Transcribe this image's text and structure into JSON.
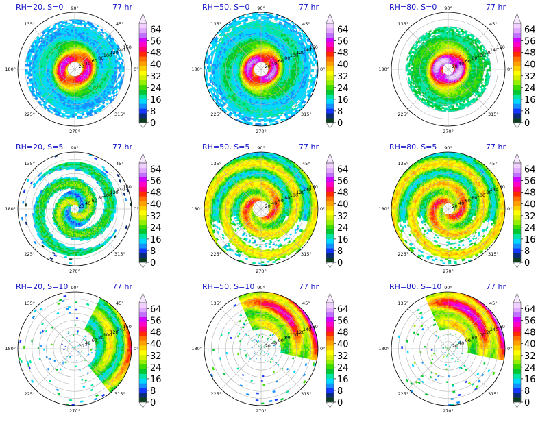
{
  "chart_data": {
    "type": "heatmap",
    "projection": "polar",
    "layout": "3x3 grid of panels",
    "time_label": "77 hr",
    "row_s_values": [
      0,
      5,
      10
    ],
    "col_rh_values": [
      20,
      50,
      80
    ],
    "angular_tick_labels": [
      "0°",
      "45°",
      "90°",
      "135°",
      "180°",
      "225°",
      "270°",
      "315°"
    ],
    "radial_tick_labels": [
      "20",
      "40",
      "60",
      "80",
      "100",
      "120",
      "140",
      "160"
    ],
    "radial_range": [
      0,
      160
    ],
    "colorbar": {
      "min": 0,
      "max": 68,
      "ticks": [
        0,
        8,
        16,
        24,
        32,
        40,
        48,
        56,
        64
      ],
      "extend": "both",
      "colors": [
        "#0e3d1f",
        "#0a2a7a",
        "#1436ff",
        "#1490ff",
        "#00d8ff",
        "#00e6a0",
        "#00c832",
        "#3cdc00",
        "#96ee00",
        "#d2f000",
        "#ffff00",
        "#ffd000",
        "#ffa000",
        "#ff7000",
        "#ff2a00",
        "#ff006e",
        "#ff00c8",
        "#d200ff",
        "#c070ff",
        "#e0a8ff",
        "#f0d0ff"
      ]
    },
    "panels": [
      {
        "title": "RH=20, S=0",
        "rh": 20,
        "s": 0,
        "time": "77 hr",
        "field": {
          "pattern": "spiral",
          "eye_radius": 22,
          "outer_radius": 140,
          "max_value": 58
        }
      },
      {
        "title": "RH=50, S=0",
        "rh": 50,
        "s": 0,
        "time": "77 hr",
        "field": {
          "pattern": "spiral",
          "eye_radius": 20,
          "outer_radius": 158,
          "max_value": 62
        }
      },
      {
        "title": "RH=80, S=0",
        "rh": 80,
        "s": 0,
        "time": "77 hr",
        "field": {
          "pattern": "compact-ring",
          "eye_radius": 16,
          "outer_radius": 118,
          "max_value": 66
        }
      },
      {
        "title": "RH=20, S=5",
        "rh": 20,
        "s": 5,
        "time": "77 hr",
        "field": {
          "pattern": "fragmented",
          "eye_radius": 14,
          "outer_radius": 130,
          "max_value": 58
        }
      },
      {
        "title": "RH=50, S=5",
        "rh": 50,
        "s": 5,
        "time": "77 hr",
        "field": {
          "pattern": "broad-shield",
          "eye_radius": 24,
          "outer_radius": 160,
          "max_value": 60
        }
      },
      {
        "title": "RH=80, S=5",
        "rh": 80,
        "s": 5,
        "time": "77 hr",
        "field": {
          "pattern": "broad-shield",
          "eye_radius": 18,
          "outer_radius": 160,
          "max_value": 62
        }
      },
      {
        "title": "RH=20, S=10",
        "rh": 20,
        "s": 10,
        "time": "77 hr",
        "field": {
          "pattern": "sheared-east",
          "eye_radius": 0,
          "outer_radius": 160,
          "max_value": 54
        }
      },
      {
        "title": "RH=50, S=10",
        "rh": 50,
        "s": 10,
        "time": "77 hr",
        "field": {
          "pattern": "sheared-northeast",
          "eye_radius": 0,
          "outer_radius": 160,
          "max_value": 56
        }
      },
      {
        "title": "RH=80, S=10",
        "rh": 80,
        "s": 10,
        "time": "77 hr",
        "field": {
          "pattern": "sheared-northeast",
          "eye_radius": 0,
          "outer_radius": 160,
          "max_value": 60
        }
      }
    ]
  }
}
